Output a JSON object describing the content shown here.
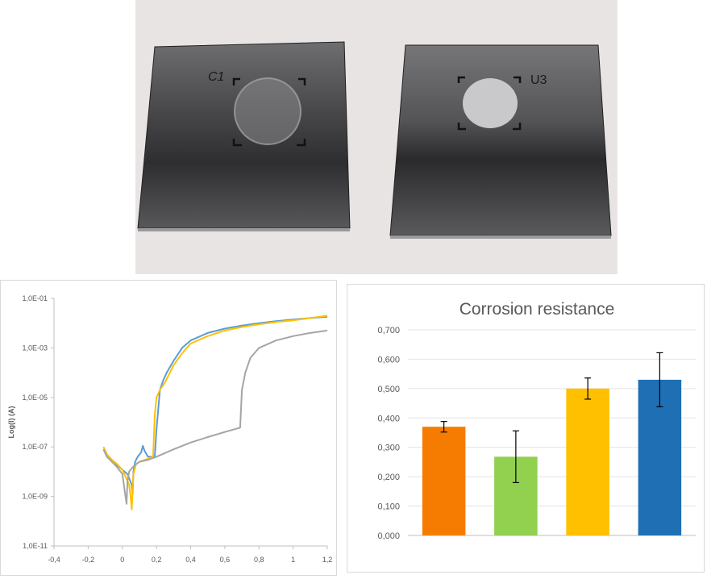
{
  "photo": {
    "plate_left_label": "C1",
    "plate_right_label": "U3"
  },
  "chart_data": [
    {
      "type": "line",
      "title": "",
      "xlabel": "",
      "ylabel": "Log(I) (A)",
      "y_scale": "log",
      "xlim": [
        -0.4,
        1.2
      ],
      "ylim": [
        "1,0E-11",
        "1,0E-01"
      ],
      "x_tick_labels": [
        "-0,4",
        "-0,2",
        "0",
        "0,2",
        "0,4",
        "0,6",
        "0,8",
        "1",
        "1,2"
      ],
      "y_tick_labels": [
        "1,0E-11",
        "1,0E-09",
        "1,0E-07",
        "1,0E-05",
        "1,0E-03",
        "1,0E-01"
      ],
      "grid": false,
      "legend": "none",
      "series": [
        {
          "color": "#5b9bd5",
          "x": [
            -0.11,
            -0.09,
            -0.06,
            -0.03,
            0.0,
            0.03,
            0.055,
            0.06,
            0.065,
            0.075,
            0.09,
            0.11,
            0.12,
            0.13,
            0.15,
            0.17,
            0.19,
            0.2,
            0.22,
            0.24,
            0.26,
            0.3,
            0.35,
            0.4,
            0.5,
            0.6,
            0.7,
            0.8,
            0.9,
            1.0,
            1.1,
            1.2
          ],
          "y": [
            8e-08,
            4e-08,
            2.5e-08,
            1.8e-08,
            1.2e-08,
            8e-09,
            3e-09,
            1.2e-09,
            1e-08,
            2.5e-08,
            4e-08,
            6e-08,
            1.1e-07,
            7e-08,
            4e-08,
            4e-08,
            4e-08,
            5e-07,
            2e-05,
            5e-05,
            0.0001,
            0.0003,
            0.001,
            0.002,
            0.004,
            0.006,
            0.008,
            0.01,
            0.012,
            0.014,
            0.016,
            0.018
          ]
        },
        {
          "color": "#ffc000",
          "x": [
            -0.11,
            -0.09,
            -0.06,
            -0.03,
            0.0,
            0.02,
            0.04,
            0.05,
            0.055,
            0.065,
            0.08,
            0.1,
            0.13,
            0.16,
            0.18,
            0.19,
            0.2,
            0.22,
            0.25,
            0.3,
            0.35,
            0.4,
            0.5,
            0.6,
            0.7,
            0.8,
            0.9,
            1.0,
            1.1,
            1.2
          ],
          "y": [
            1e-07,
            5e-08,
            3e-08,
            2e-08,
            1.2e-08,
            6e-09,
            3e-09,
            8e-10,
            3e-10,
            8e-09,
            2e-08,
            2.5e-08,
            3e-08,
            3.5e-08,
            4e-08,
            2e-06,
            1e-05,
            2e-05,
            4e-05,
            0.0002,
            0.0006,
            0.0015,
            0.003,
            0.005,
            0.007,
            0.009,
            0.011,
            0.013,
            0.016,
            0.02
          ]
        },
        {
          "color": "#a5a5a5",
          "x": [
            -0.11,
            -0.09,
            -0.06,
            -0.03,
            0.0,
            0.015,
            0.025,
            0.03,
            0.04,
            0.06,
            0.08,
            0.1,
            0.15,
            0.2,
            0.3,
            0.4,
            0.5,
            0.6,
            0.65,
            0.69,
            0.7,
            0.72,
            0.75,
            0.8,
            0.9,
            1.0,
            1.1,
            1.2
          ],
          "y": [
            8e-08,
            4e-08,
            2.5e-08,
            1.5e-08,
            8e-09,
            1.5e-09,
            5e-10,
            4e-09,
            1e-08,
            1.5e-08,
            2e-08,
            2.5e-08,
            3e-08,
            4e-08,
            8e-08,
            1.5e-07,
            2.5e-07,
            4e-07,
            5e-07,
            6e-07,
            2e-05,
            0.0001,
            0.0004,
            0.001,
            0.002,
            0.003,
            0.004,
            0.005
          ]
        }
      ]
    },
    {
      "type": "bar",
      "title": "Corrosion resistance",
      "xlabel": "",
      "ylabel": "",
      "categories": [
        "",
        "",
        "",
        ""
      ],
      "values": [
        0.37,
        0.268,
        0.5,
        0.53
      ],
      "errors": [
        0.018,
        0.088,
        0.036,
        0.092
      ],
      "colors": [
        "#f57c00",
        "#92d050",
        "#ffc000",
        "#1f6fb5"
      ],
      "ylim": [
        0.0,
        0.7
      ],
      "y_tick_labels": [
        "0,000",
        "0,100",
        "0,200",
        "0,300",
        "0,400",
        "0,500",
        "0,600",
        "0,700"
      ],
      "grid": true,
      "legend": "none"
    }
  ]
}
